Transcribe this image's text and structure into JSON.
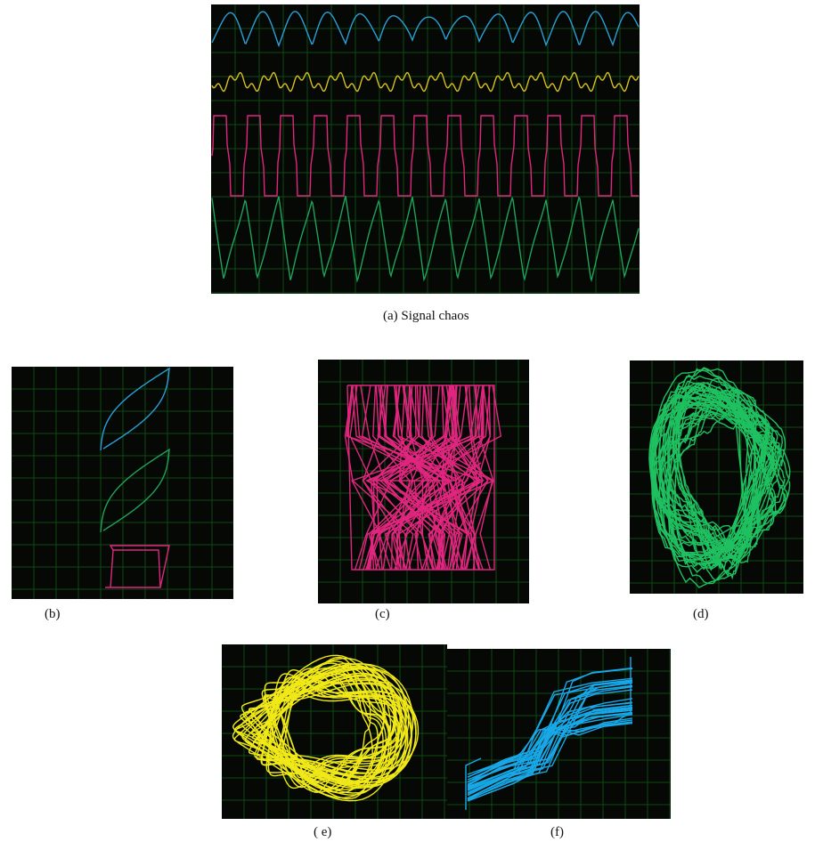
{
  "captions": {
    "a": "(a)   Signal chaos",
    "b": "(b)",
    "c": "(c)",
    "d": "(d)",
    "e": "( e)",
    "f": "(f)"
  }
}
